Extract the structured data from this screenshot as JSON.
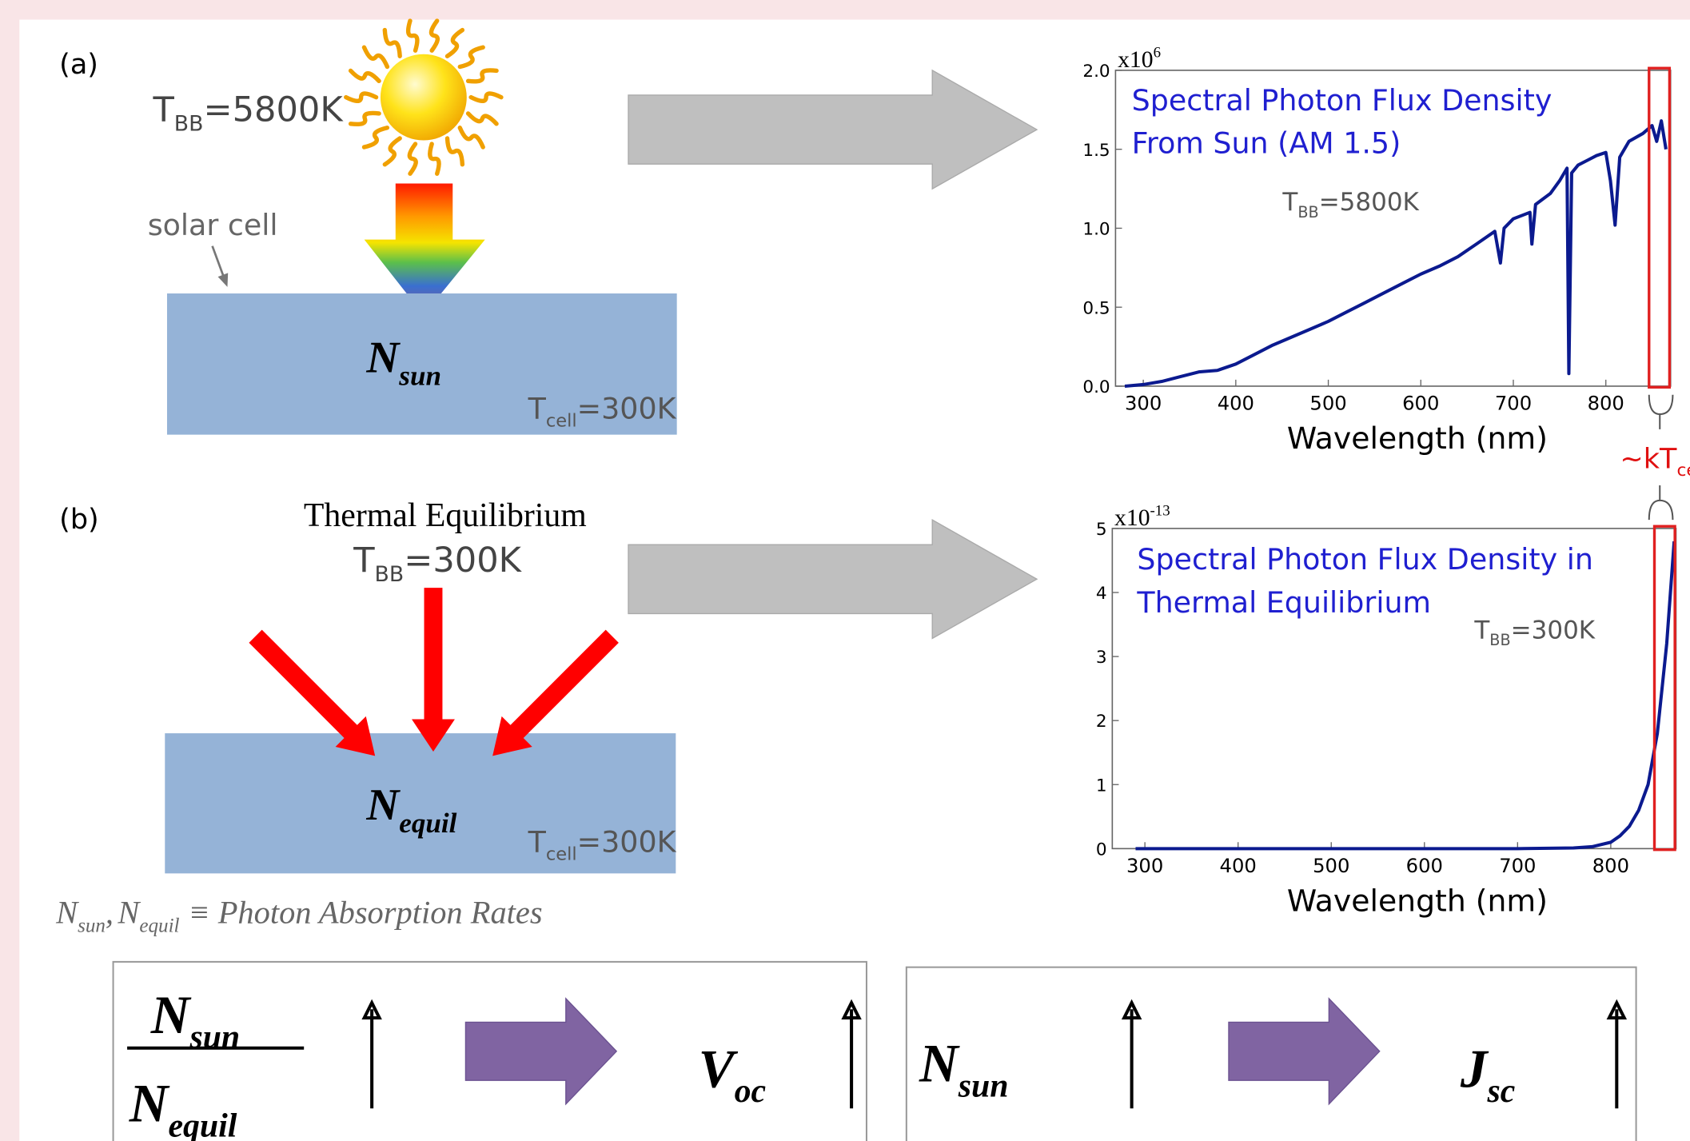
{
  "panel_a": {
    "label": "(a)",
    "source_temp": {
      "symbol": "T",
      "sub": "BB",
      "value": "=5800K"
    },
    "cell_label": "solar cell",
    "rate": {
      "symbol": "N",
      "sub": "sun"
    },
    "cell_temp": {
      "symbol": "T",
      "sub": "cell",
      "value": "=300K"
    }
  },
  "panel_b": {
    "label": "(b)",
    "heading": "Thermal Equilibrium",
    "source_temp": {
      "symbol": "T",
      "sub": "BB",
      "value": "=300K"
    },
    "rate": {
      "symbol": "N",
      "sub": "equil"
    },
    "cell_temp": {
      "symbol": "T",
      "sub": "cell",
      "value": "=300K"
    }
  },
  "definition": {
    "terms": [
      {
        "symbol": "N",
        "sub": "sun"
      },
      {
        "symbol": "N",
        "sub": "equil"
      }
    ],
    "separator": ",",
    "relation": "≡ Photon Absorption Rates"
  },
  "bandwidth_label": {
    "symbol": "~kT",
    "sub": "cell"
  },
  "results": [
    {
      "numerator": {
        "symbol": "N",
        "sub": "sun"
      },
      "denominator": {
        "symbol": "N",
        "sub": "equil"
      },
      "output": {
        "symbol": "V",
        "sub": "oc"
      }
    },
    {
      "input": {
        "symbol": "N",
        "sub": "sun"
      },
      "output": {
        "symbol": "J",
        "sub": "sc"
      }
    }
  ],
  "chart_data": [
    {
      "type": "line",
      "title": [
        "Spectral Photon Flux Density",
        "From Sun (AM 1.5)"
      ],
      "annotation": {
        "symbol": "T",
        "sub": "BB",
        "value": "=5800K"
      },
      "x_label": "Wavelength (nm)",
      "y_scale": {
        "base": "x10",
        "exponent": "6"
      },
      "x": [
        280,
        300,
        320,
        340,
        360,
        380,
        400,
        420,
        440,
        460,
        480,
        500,
        520,
        540,
        560,
        580,
        600,
        620,
        640,
        660,
        680,
        686,
        690,
        700,
        718,
        720,
        724,
        740,
        750,
        758,
        760,
        763,
        770,
        780,
        790,
        800,
        805,
        810,
        815,
        825,
        840,
        850,
        855,
        860,
        865
      ],
      "values": [
        0,
        0.01,
        0.03,
        0.06,
        0.09,
        0.1,
        0.14,
        0.2,
        0.26,
        0.31,
        0.36,
        0.41,
        0.47,
        0.53,
        0.59,
        0.65,
        0.71,
        0.76,
        0.82,
        0.9,
        0.98,
        0.78,
        1.0,
        1.06,
        1.1,
        0.9,
        1.15,
        1.22,
        1.3,
        1.38,
        0.08,
        1.35,
        1.4,
        1.43,
        1.46,
        1.48,
        1.3,
        1.02,
        1.45,
        1.55,
        1.6,
        1.65,
        1.55,
        1.68,
        1.5
      ],
      "color": "#0b1a8f",
      "xlim": [
        270,
        870
      ],
      "ylim": [
        0,
        2.0
      ],
      "xticks": [
        300,
        400,
        500,
        600,
        700,
        800
      ],
      "yticks": [
        {
          "value": 0,
          "label": "0.0"
        },
        {
          "value": 0.5,
          "label": "0.5"
        },
        {
          "value": 1.0,
          "label": "1.0"
        },
        {
          "value": 1.5,
          "label": "1.5"
        },
        {
          "value": 2.0,
          "label": "2.0"
        }
      ]
    },
    {
      "type": "line",
      "title": [
        "Spectral Photon Flux Density in",
        "Thermal Equilibrium"
      ],
      "annotation": {
        "symbol": "T",
        "sub": "BB",
        "value": "=300K"
      },
      "x_label": "Wavelength (nm)",
      "y_scale": {
        "base": "x10",
        "exponent": "-13"
      },
      "x": [
        290,
        400,
        500,
        600,
        700,
        760,
        780,
        800,
        810,
        820,
        830,
        840,
        850,
        860,
        868
      ],
      "values": [
        0,
        0,
        0,
        0,
        0,
        0.01,
        0.03,
        0.1,
        0.2,
        0.35,
        0.6,
        1.0,
        1.8,
        3.2,
        4.8
      ],
      "color": "#0b1a8f",
      "xlim": [
        265,
        870
      ],
      "ylim": [
        0,
        5
      ],
      "xticks": [
        300,
        400,
        500,
        600,
        700,
        800
      ],
      "yticks": [
        0,
        1,
        2,
        3,
        4,
        5
      ]
    }
  ]
}
